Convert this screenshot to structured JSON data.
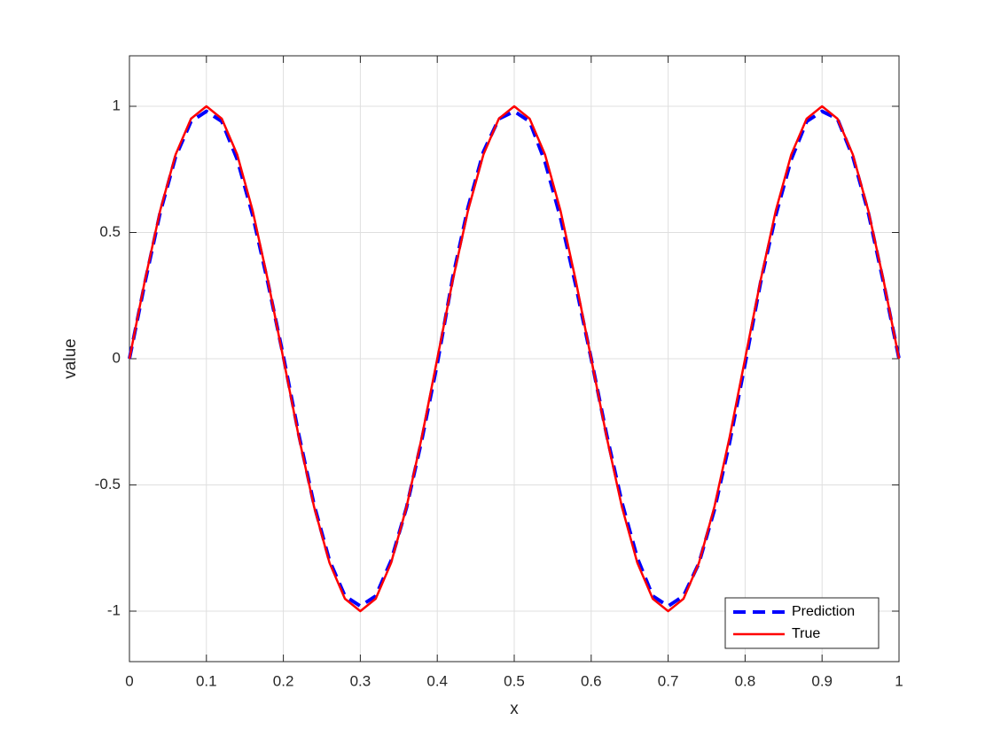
{
  "chart_data": {
    "type": "line",
    "xlabel": "x",
    "ylabel": "value",
    "x": [
      0,
      0.02,
      0.04,
      0.06,
      0.08,
      0.1,
      0.12,
      0.14,
      0.16,
      0.18,
      0.2,
      0.22,
      0.24,
      0.26,
      0.28,
      0.3,
      0.32,
      0.34,
      0.36,
      0.38,
      0.4,
      0.42,
      0.44,
      0.46,
      0.48,
      0.5,
      0.52,
      0.54,
      0.56,
      0.58,
      0.6,
      0.62,
      0.64,
      0.66,
      0.68,
      0.7,
      0.72,
      0.74,
      0.76,
      0.78,
      0.8,
      0.82,
      0.84,
      0.86,
      0.88,
      0.9,
      0.92,
      0.94,
      0.96,
      0.98,
      1
    ],
    "series": [
      {
        "name": "Prediction",
        "color": "#0000ff",
        "line_style": "dashed",
        "values": [
          0,
          0.3,
          0.58,
          0.8,
          0.94,
          0.98,
          0.94,
          0.79,
          0.57,
          0.3,
          0.01,
          -0.3,
          -0.58,
          -0.8,
          -0.94,
          -0.98,
          -0.94,
          -0.8,
          -0.59,
          -0.32,
          -0.02,
          0.32,
          0.6,
          0.82,
          0.95,
          0.98,
          0.94,
          0.78,
          0.56,
          0.29,
          0,
          -0.3,
          -0.57,
          -0.79,
          -0.94,
          -0.98,
          -0.94,
          -0.81,
          -0.6,
          -0.33,
          -0.02,
          0.3,
          0.57,
          0.79,
          0.94,
          0.98,
          0.95,
          0.8,
          0.58,
          0.3,
          0
        ]
      },
      {
        "name": "True",
        "color": "#ff0000",
        "line_style": "solid",
        "values": [
          0,
          0.309,
          0.588,
          0.809,
          0.951,
          1,
          0.951,
          0.809,
          0.588,
          0.309,
          0,
          -0.309,
          -0.588,
          -0.809,
          -0.951,
          -1,
          -0.951,
          -0.809,
          -0.588,
          -0.309,
          0,
          0.309,
          0.588,
          0.809,
          0.951,
          1,
          0.951,
          0.809,
          0.588,
          0.309,
          0,
          -0.309,
          -0.588,
          -0.809,
          -0.951,
          -1,
          -0.951,
          -0.809,
          -0.588,
          -0.309,
          0,
          0.309,
          0.588,
          0.809,
          0.951,
          1,
          0.951,
          0.809,
          0.588,
          0.309,
          0
        ]
      }
    ],
    "xlim": [
      0,
      1
    ],
    "xticks": [
      0,
      0.1,
      0.2,
      0.3,
      0.4,
      0.5,
      0.6,
      0.7,
      0.8,
      0.9,
      1
    ],
    "ylim": [
      -1.2,
      1.2
    ],
    "yticks": [
      -1,
      -0.5,
      0,
      0.5,
      1
    ],
    "grid": true,
    "legend": "southeast"
  }
}
